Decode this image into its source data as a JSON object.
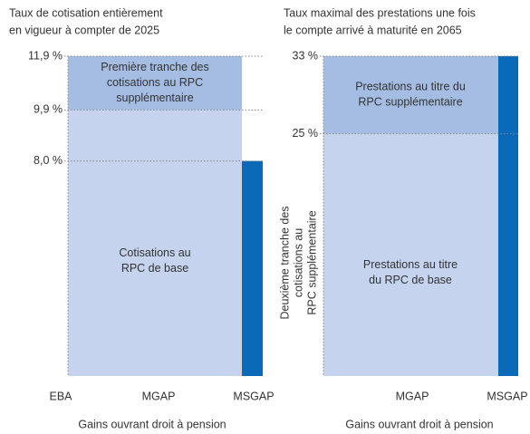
{
  "chart_data": [
    {
      "type": "region",
      "title": [
        "Taux de cotisation entièrement",
        "en vigueur à compter de 2025"
      ],
      "ylim": [
        0,
        11.9
      ],
      "yticks": [
        {
          "value": 11.9,
          "label": "11,9 %"
        },
        {
          "value": 9.9,
          "label": "9,9 %"
        },
        {
          "value": 8.0,
          "label": "8,0 %"
        }
      ],
      "categories": [
        "EBA",
        "MGAP",
        "MSGAP"
      ],
      "xlabel": "Gains ouvrant droit à pension",
      "regions": [
        {
          "label": [
            "Cotisations au",
            "RPC de base"
          ],
          "value": 9.9,
          "color": "#c5d3ee"
        },
        {
          "label": [
            "Première tranche des",
            "cotisations au RPC",
            "supplémentaire"
          ],
          "value": 11.9,
          "color": "#a6bde3"
        },
        {
          "value": 8.0,
          "color": "#0a6ab8"
        }
      ]
    },
    {
      "type": "region",
      "title": [
        "Taux maximal des prestations une fois",
        "le compte arrivé à maturité en 2065"
      ],
      "ylim": [
        0,
        33
      ],
      "yticks": [
        {
          "value": 33,
          "label": "33 %"
        },
        {
          "value": 25,
          "label": "25 %"
        }
      ],
      "categories": [
        "MGAP",
        "MSGAP"
      ],
      "xlabel": "Gains ouvrant droit à pension",
      "annotation": [
        "Deuxième tranche des",
        "cotisations au",
        "RPC supplémentaire"
      ],
      "regions": [
        {
          "label": [
            "Prestations au titre",
            "du RPC de base"
          ],
          "value": 25,
          "color": "#c5d3ee"
        },
        {
          "label": [
            "Prestations au titre du",
            "RPC supplémentaire"
          ],
          "value": 33,
          "color": "#a6bde3"
        },
        {
          "value": 33,
          "color": "#0a6ab8"
        }
      ]
    }
  ]
}
